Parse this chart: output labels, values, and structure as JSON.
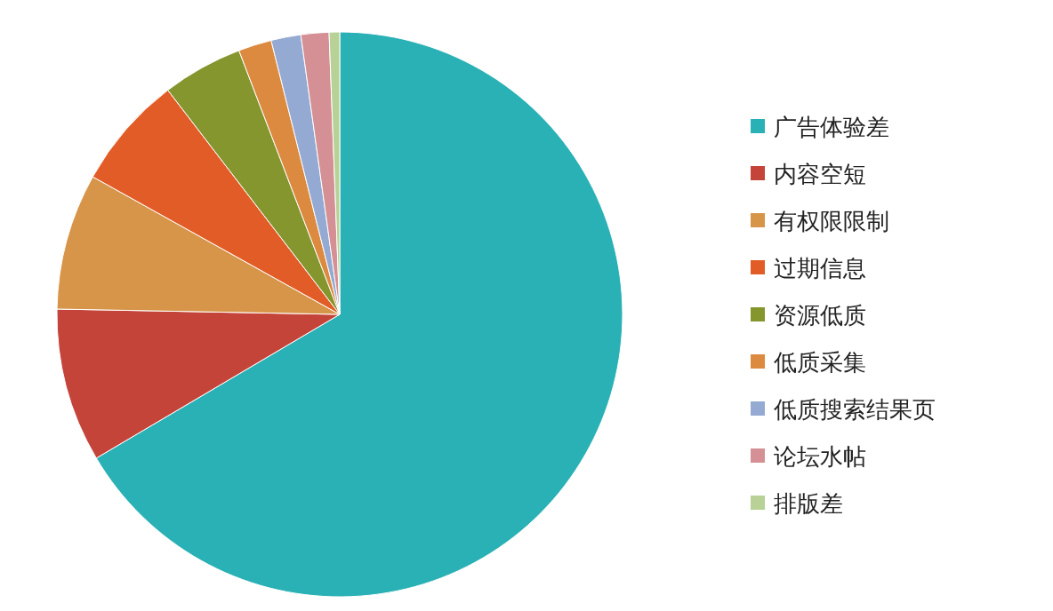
{
  "chart_data": {
    "type": "pie",
    "legend": "right",
    "categories": [
      "广告体验差",
      "内容空短",
      "有权限限制",
      "过期信息",
      "资源低质",
      "低质采集",
      "低质搜索结果页",
      "论坛水帖",
      "排版差"
    ],
    "values": [
      66.5,
      8.8,
      7.8,
      6.5,
      4.6,
      1.9,
      1.7,
      1.6,
      0.6
    ],
    "colors": [
      "#2ab1b5",
      "#c5443a",
      "#d79549",
      "#e25c27",
      "#86962e",
      "#dc8a40",
      "#94aad2",
      "#d49094",
      "#b7d196"
    ]
  }
}
